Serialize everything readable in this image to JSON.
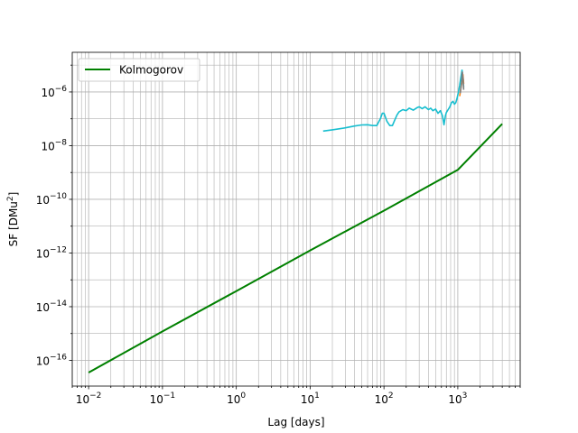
{
  "chart_data": {
    "type": "line",
    "title": "",
    "xlabel": "Lag [days]",
    "ylabel_main": "SF [DMu",
    "ylabel_sup": "2",
    "ylabel_end": "]",
    "xscale": "log",
    "yscale": "log",
    "xlim": [
      0.006,
      7000
    ],
    "ylim": [
      1.1e-17,
      3e-05
    ],
    "grid": "major and minor",
    "x_ticks": [
      {
        "value": 0.01,
        "mant": "10",
        "exp": "−2"
      },
      {
        "value": 0.1,
        "mant": "10",
        "exp": "−1"
      },
      {
        "value": 1,
        "mant": "10",
        "exp": "0"
      },
      {
        "value": 10,
        "mant": "10",
        "exp": "1"
      },
      {
        "value": 100,
        "mant": "10",
        "exp": "2"
      },
      {
        "value": 1000,
        "mant": "10",
        "exp": "3"
      }
    ],
    "y_ticks": [
      {
        "value": 1e-16,
        "mant": "10",
        "exp": "−16"
      },
      {
        "value": 1e-14,
        "mant": "10",
        "exp": "−14"
      },
      {
        "value": 1e-12,
        "mant": "10",
        "exp": "−12"
      },
      {
        "value": 1e-10,
        "mant": "10",
        "exp": "−10"
      },
      {
        "value": 1e-08,
        "mant": "10",
        "exp": "−8"
      },
      {
        "value": 1e-06,
        "mant": "10",
        "exp": "−6"
      }
    ],
    "legend": {
      "placement": "upper-left",
      "entries": [
        "Kolmogorov"
      ]
    },
    "series": [
      {
        "name": "Kolmogorov",
        "color": "#008000",
        "x": [
          0.01,
          0.1,
          1,
          10,
          100,
          1000,
          4000
        ],
        "y": [
          3.5e-17,
          1.2e-15,
          3.8e-14,
          1.25e-12,
          3.8e-11,
          1.25e-09,
          6.5e-08
        ]
      },
      {
        "color": "#17becf",
        "x": [
          15,
          20,
          30,
          40,
          50,
          60,
          70,
          80,
          90,
          95,
          100,
          110,
          120,
          130,
          140,
          150,
          160,
          180,
          200,
          220,
          250,
          280,
          300,
          330,
          360,
          400,
          430,
          460,
          500,
          540,
          580,
          620,
          650,
          680,
          700,
          740,
          780,
          820,
          860,
          900,
          940,
          980,
          1020,
          1060,
          1100,
          1140,
          1180,
          1200
        ],
        "y": [
          3.5e-08,
          3.9e-08,
          4.6e-08,
          5.4e-08,
          5.9e-08,
          6e-08,
          5.6e-08,
          5.6e-08,
          1.05e-07,
          1.6e-07,
          1.6e-07,
          8e-08,
          5.6e-08,
          5.6e-08,
          9e-08,
          1.4e-07,
          1.8e-07,
          2.2e-07,
          2e-07,
          2.5e-07,
          2.1e-07,
          2.6e-07,
          2.8e-07,
          2.4e-07,
          2.8e-07,
          2.2e-07,
          2.5e-07,
          2e-07,
          2.3e-07,
          1.6e-07,
          2e-07,
          1.3e-07,
          6e-08,
          1.3e-07,
          1.7e-07,
          2.2e-07,
          2.8e-07,
          4e-07,
          4.5e-07,
          3.5e-07,
          4e-07,
          6e-07,
          1e-06,
          1.8e-06,
          3.5e-06,
          6.5e-06,
          3e-06,
          1.5e-06
        ]
      },
      {
        "color": "#ff7f0e",
        "x": [
          1060,
          1100,
          1140,
          1170,
          1200
        ],
        "y": [
          7e-07,
          1.4e-06,
          2.5e-06,
          4.5e-06,
          2e-06
        ]
      },
      {
        "color": "#7f7f7f",
        "x": [
          1080,
          1120,
          1150,
          1180,
          1200
        ],
        "y": [
          9e-07,
          2e-06,
          5.5e-06,
          3e-06,
          1.2e-06
        ]
      }
    ]
  }
}
